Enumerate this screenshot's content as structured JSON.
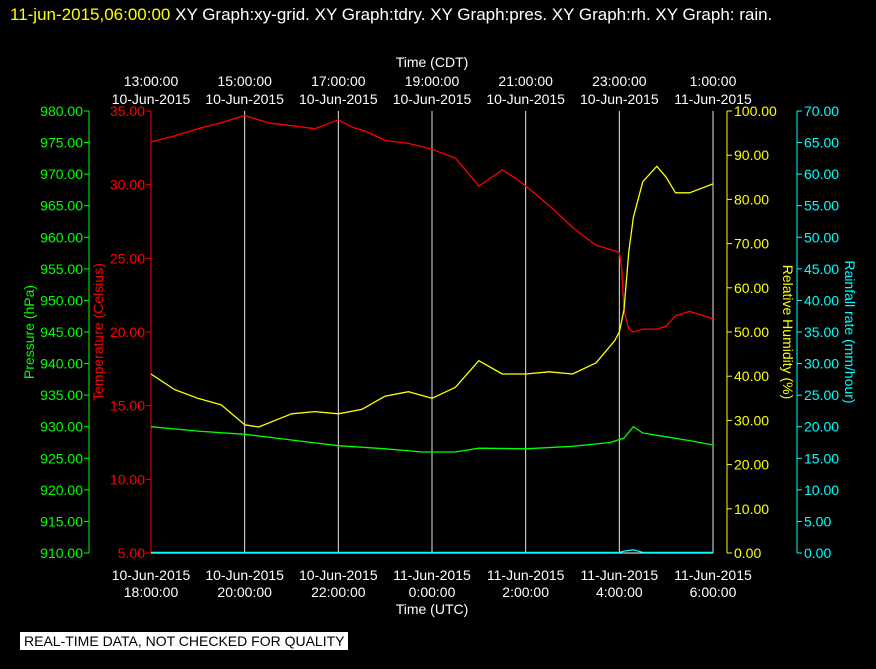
{
  "header": {
    "timestamp": "11-jun-2015,06:00:00",
    "graphs": "XY Graph:xy-grid.  XY Graph:tdry.  XY Graph:pres.  XY Graph:rh.  XY Graph: rain."
  },
  "footer": {
    "disclaimer": "REAL-TIME DATA, NOT CHECKED FOR QUALITY"
  },
  "colors": {
    "background": "#000000",
    "grid": "#e6e6e6",
    "temperature": "#ff0000",
    "pressure": "#00ff00",
    "humidity": "#ffff00",
    "rain": "#00ffff",
    "timestamp": "#ffff00"
  },
  "chart_data": {
    "type": "line",
    "grid": true,
    "x_top": {
      "label": "Time (CDT)",
      "ticks": [
        [
          "13:00:00",
          "10-Jun-2015"
        ],
        [
          "15:00:00",
          "10-Jun-2015"
        ],
        [
          "17:00:00",
          "10-Jun-2015"
        ],
        [
          "19:00:00",
          "10-Jun-2015"
        ],
        [
          "21:00:00",
          "10-Jun-2015"
        ],
        [
          "23:00:00",
          "10-Jun-2015"
        ],
        [
          "1:00:00",
          "11-Jun-2015"
        ]
      ]
    },
    "x_bottom": {
      "label": "Time (UTC)",
      "ticks": [
        [
          "10-Jun-2015",
          "18:00:00"
        ],
        [
          "10-Jun-2015",
          "20:00:00"
        ],
        [
          "10-Jun-2015",
          "22:00:00"
        ],
        [
          "11-Jun-2015",
          "0:00:00"
        ],
        [
          "11-Jun-2015",
          "2:00:00"
        ],
        [
          "11-Jun-2015",
          "4:00:00"
        ],
        [
          "11-Jun-2015",
          "6:00:00"
        ]
      ],
      "range_hours_utc": [
        18,
        30
      ]
    },
    "axes": {
      "pressure": {
        "label": "Pressure (hPa)",
        "min": 910,
        "max": 980,
        "ticks": [
          "910.00",
          "915.00",
          "920.00",
          "925.00",
          "930.00",
          "935.00",
          "940.00",
          "945.00",
          "950.00",
          "955.00",
          "960.00",
          "965.00",
          "970.00",
          "975.00",
          "980.00"
        ]
      },
      "temperature": {
        "label": "Temperature (Celsius)",
        "min": 5,
        "max": 35,
        "ticks": [
          "5.00",
          "10.00",
          "15.00",
          "20.00",
          "25.00",
          "30.00",
          "35.00"
        ]
      },
      "humidity": {
        "label": "Relative Humidity (%)",
        "min": 0,
        "max": 100,
        "ticks": [
          "0.00",
          "10.00",
          "20.00",
          "30.00",
          "40.00",
          "50.00",
          "60.00",
          "70.00",
          "80.00",
          "90.00",
          "100.00"
        ]
      },
      "rain": {
        "label": "Rainfall rate (mm/hour)",
        "min": 0,
        "max": 70,
        "ticks": [
          "0.00",
          "5.00",
          "10.00",
          "15.00",
          "20.00",
          "25.00",
          "30.00",
          "35.00",
          "40.00",
          "45.00",
          "50.00",
          "55.00",
          "60.00",
          "65.00",
          "70.00"
        ]
      }
    },
    "series": [
      {
        "axis": "temperature",
        "x": [
          18.0,
          18.5,
          19.0,
          19.5,
          20.0,
          20.5,
          21.0,
          21.5,
          22.0,
          22.3,
          22.6,
          23.0,
          23.5,
          24.0,
          24.5,
          25.0,
          25.5,
          25.8,
          26.2,
          26.6,
          27.0,
          27.5,
          28.0,
          28.05,
          28.1,
          28.2,
          28.3,
          28.5,
          28.8,
          29.0,
          29.2,
          29.5,
          30.0
        ],
        "y": [
          32.9,
          33.3,
          33.8,
          34.2,
          34.7,
          34.2,
          34.0,
          33.8,
          34.4,
          33.9,
          33.6,
          33.0,
          32.8,
          32.4,
          31.8,
          29.9,
          31.0,
          30.4,
          29.4,
          28.3,
          27.1,
          25.9,
          25.4,
          24.3,
          21.5,
          20.2,
          20.0,
          20.2,
          20.2,
          20.4,
          21.1,
          21.4,
          20.9
        ]
      },
      {
        "axis": "pressure",
        "x": [
          18.0,
          19.0,
          20.0,
          21.0,
          22.0,
          23.0,
          23.8,
          24.5,
          25.0,
          26.0,
          27.0,
          27.8,
          28.1,
          28.3,
          28.5,
          29.0,
          29.5,
          30.0
        ],
        "y": [
          930.0,
          929.3,
          928.8,
          927.9,
          927.0,
          926.5,
          926.0,
          926.0,
          926.6,
          926.5,
          926.9,
          927.5,
          928.2,
          930.0,
          929.0,
          928.4,
          927.8,
          927.1
        ]
      },
      {
        "axis": "humidity",
        "x": [
          18.0,
          18.5,
          19.0,
          19.5,
          20.0,
          20.3,
          21.0,
          21.5,
          22.0,
          22.5,
          23.0,
          23.5,
          24.0,
          24.5,
          25.0,
          25.5,
          26.0,
          26.5,
          27.0,
          27.5,
          27.9,
          28.0,
          28.1,
          28.2,
          28.3,
          28.5,
          28.8,
          29.0,
          29.2,
          29.5,
          30.0
        ],
        "y": [
          40.5,
          37.0,
          35.0,
          33.5,
          29.0,
          28.5,
          31.5,
          32.0,
          31.5,
          32.5,
          35.5,
          36.5,
          35.0,
          37.5,
          43.5,
          40.5,
          40.5,
          41.0,
          40.5,
          43.0,
          48.0,
          50.0,
          55.0,
          68.0,
          76.0,
          84.0,
          87.5,
          85.0,
          81.5,
          81.5,
          83.5
        ]
      },
      {
        "axis": "rain",
        "x": [
          18.0,
          28.0,
          28.1,
          28.3,
          28.5,
          30.0
        ],
        "y": [
          0.1,
          0.1,
          0.3,
          0.5,
          0.1,
          0.1
        ]
      }
    ]
  }
}
